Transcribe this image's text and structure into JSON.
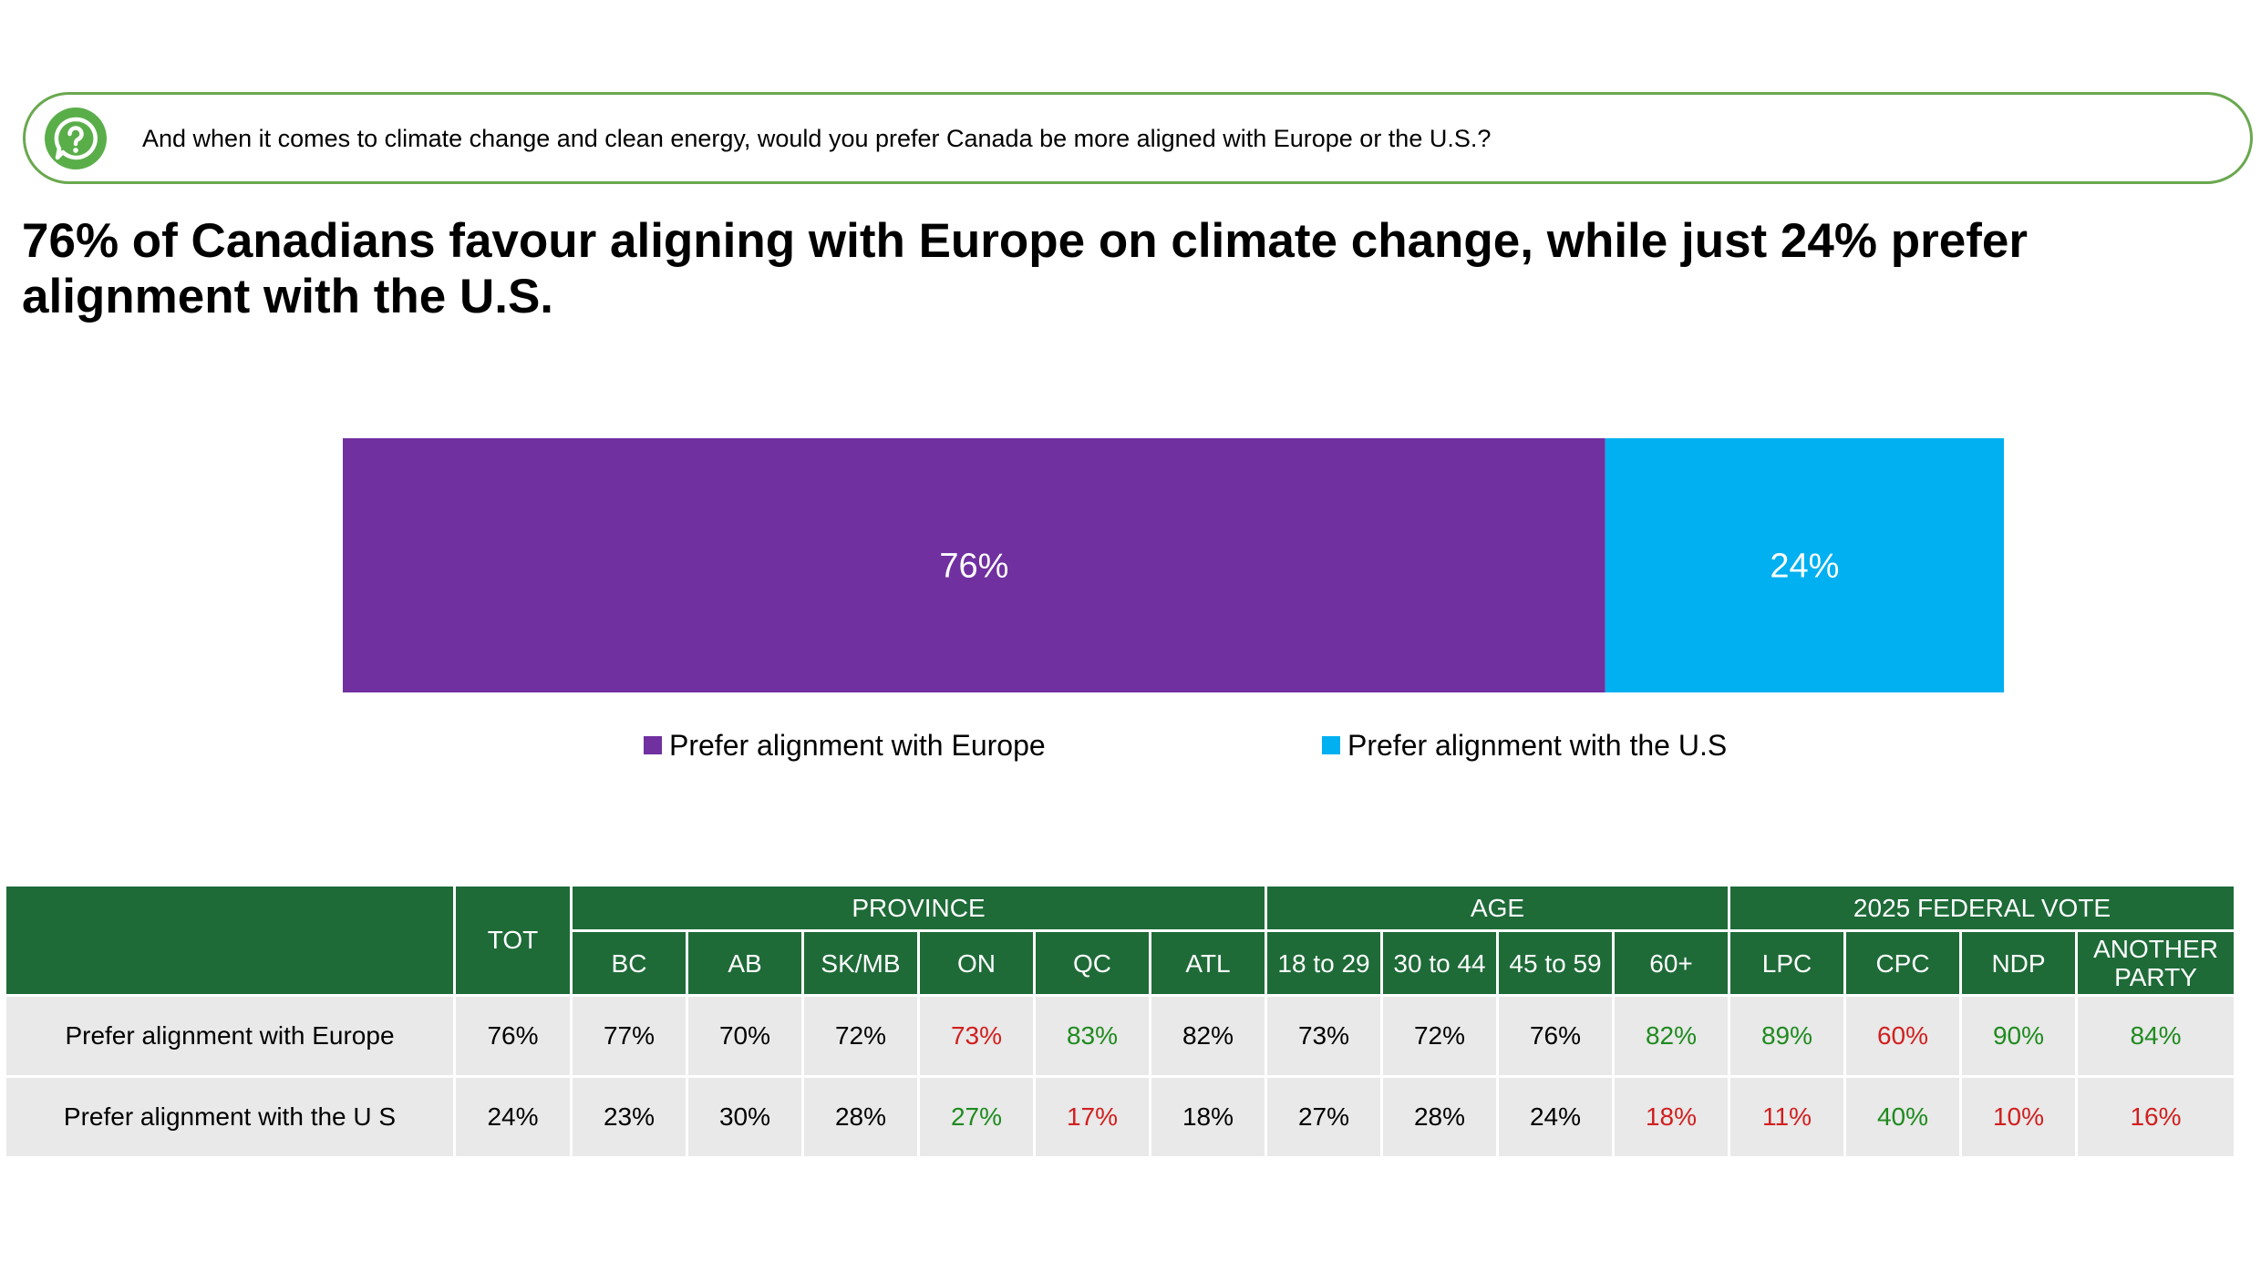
{
  "question": {
    "icon": "question-bubble-icon",
    "text": "And when it comes to climate change and clean energy, would you prefer Canada be more aligned with Europe or the U.S.?"
  },
  "headline": "76% of Canadians favour aligning with Europe on climate change, while just 24% prefer alignment with the U.S.",
  "chart_data": {
    "type": "bar",
    "orientation": "horizontal-stacked-100",
    "series": [
      {
        "name": "Prefer alignment with Europe",
        "value": 76,
        "label": "76%",
        "color": "#7030a0"
      },
      {
        "name": "Prefer alignment with the U.S",
        "value": 24,
        "label": "24%",
        "color": "#00b0f0"
      }
    ],
    "legend": "bottom"
  },
  "table": {
    "tot_header": "TOT",
    "groups": [
      {
        "label": "PROVINCE",
        "span": 6
      },
      {
        "label": "AGE",
        "span": 4
      },
      {
        "label": "2025 FEDERAL VOTE",
        "span": 4
      }
    ],
    "columns": [
      "BC",
      "AB",
      "SK/MB",
      "ON",
      "QC",
      "ATL",
      "18 to 29",
      "30 to 44",
      "45 to 59",
      "60+",
      "LPC",
      "CPC",
      "NDP",
      "ANOTHER PARTY"
    ],
    "rows": [
      {
        "label": "Prefer alignment with Europe",
        "cells": [
          {
            "v": "76%",
            "s": "neu"
          },
          {
            "v": "77%",
            "s": "neu"
          },
          {
            "v": "70%",
            "s": "neu"
          },
          {
            "v": "72%",
            "s": "neu"
          },
          {
            "v": "73%",
            "s": "neg"
          },
          {
            "v": "83%",
            "s": "pos"
          },
          {
            "v": "82%",
            "s": "neu"
          },
          {
            "v": "73%",
            "s": "neu"
          },
          {
            "v": "72%",
            "s": "neu"
          },
          {
            "v": "76%",
            "s": "neu"
          },
          {
            "v": "82%",
            "s": "pos"
          },
          {
            "v": "89%",
            "s": "pos"
          },
          {
            "v": "60%",
            "s": "neg"
          },
          {
            "v": "90%",
            "s": "pos"
          },
          {
            "v": "84%",
            "s": "pos"
          }
        ]
      },
      {
        "label": "Prefer alignment with the U S",
        "cells": [
          {
            "v": "24%",
            "s": "neu"
          },
          {
            "v": "23%",
            "s": "neu"
          },
          {
            "v": "30%",
            "s": "neu"
          },
          {
            "v": "28%",
            "s": "neu"
          },
          {
            "v": "27%",
            "s": "pos"
          },
          {
            "v": "17%",
            "s": "neg"
          },
          {
            "v": "18%",
            "s": "neu"
          },
          {
            "v": "27%",
            "s": "neu"
          },
          {
            "v": "28%",
            "s": "neu"
          },
          {
            "v": "24%",
            "s": "neu"
          },
          {
            "v": "18%",
            "s": "neg"
          },
          {
            "v": "11%",
            "s": "neg"
          },
          {
            "v": "40%",
            "s": "pos"
          },
          {
            "v": "10%",
            "s": "neg"
          },
          {
            "v": "16%",
            "s": "neg"
          }
        ]
      }
    ]
  },
  "colors": {
    "header_green": "#1e6b38",
    "outline_green": "#6aa84f",
    "positive": "#1f8a1f",
    "negative": "#d11f1f",
    "row_bg": "#e8e9e8"
  }
}
